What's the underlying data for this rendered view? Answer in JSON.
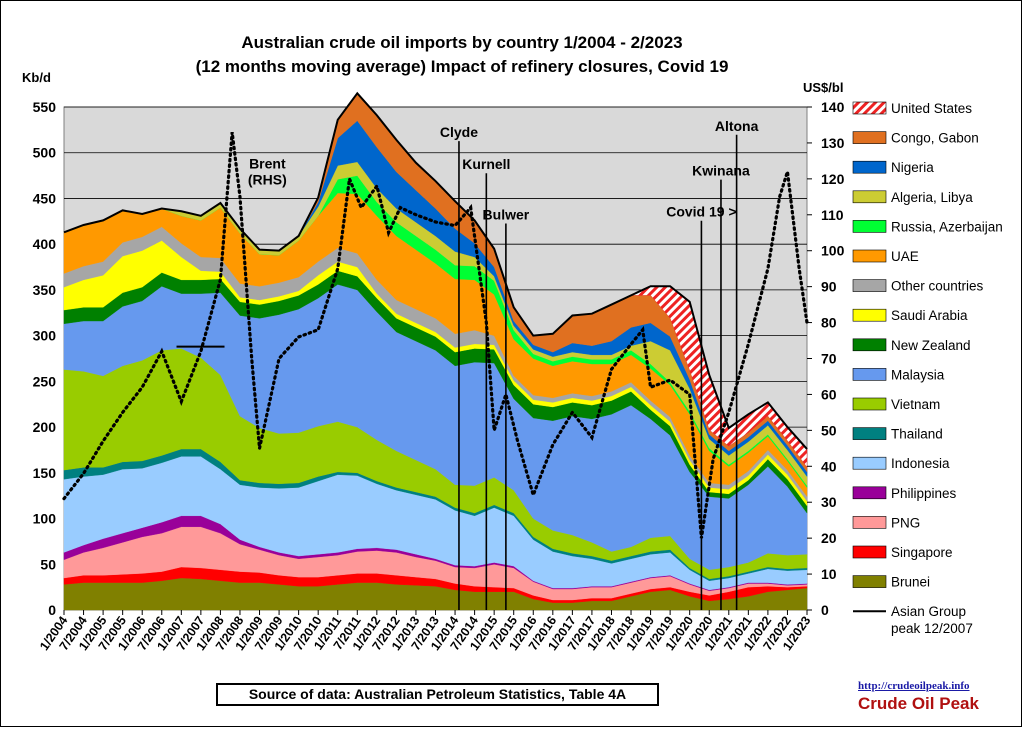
{
  "title_line1": "Australian crude oil imports  by country 1/2004 - 2/2023",
  "title_line2": "(12 months moving average) Impact of refinery closures, Covid 19",
  "source": "Source of data: Australian Petroleum Statistics,  Table 4A",
  "site_url": "http://crudeoilpeak.info",
  "site_name": "Crude Oil Peak",
  "chart_data": {
    "type": "area",
    "stacked": true,
    "ylabel": "Kb/d",
    "y2label": "US$/bl",
    "ylim": [
      0,
      550
    ],
    "y2lim": [
      0,
      140
    ],
    "yticks": [
      0,
      50,
      100,
      150,
      200,
      250,
      300,
      350,
      400,
      450,
      500,
      550
    ],
    "y2ticks": [
      0,
      10,
      20,
      30,
      40,
      50,
      60,
      70,
      80,
      90,
      100,
      110,
      120,
      130,
      140
    ],
    "grid": true,
    "legend_position": "right",
    "x": [
      2004,
      2004.5,
      2005,
      2005.5,
      2006,
      2006.5,
      2007,
      2007.5,
      2008,
      2008.5,
      2009,
      2009.5,
      2010,
      2010.5,
      2011,
      2011.5,
      2012,
      2012.5,
      2013,
      2013.5,
      2014,
      2014.5,
      2015,
      2015.5,
      2016,
      2016.5,
      2017,
      2017.5,
      2018,
      2018.5,
      2019,
      2019.5,
      2020,
      2020.5,
      2021,
      2021.5,
      2022,
      2022.5,
      2023
    ],
    "x_tick_labels": [
      "1/2004",
      "7/2004",
      "1/2005",
      "7/2005",
      "1/2006",
      "7/2006",
      "1/2007",
      "7/2007",
      "1/2008",
      "7/2008",
      "1/2009",
      "7/2009",
      "1/2010",
      "7/2010",
      "1/2011",
      "7/2011",
      "1/2012",
      "7/2012",
      "1/2013",
      "7/2013",
      "1/2014",
      "7/2014",
      "1/2015",
      "7/2015",
      "1/2016",
      "7/2016",
      "1/2017",
      "7/2017",
      "1/2018",
      "7/2018",
      "1/2019",
      "7/2019",
      "1/2020",
      "7/2020",
      "1/2021",
      "7/2021",
      "1/2022",
      "7/2022",
      "1/2023"
    ],
    "series": [
      {
        "name": "Brunei",
        "color": "#808000",
        "values": [
          28,
          30,
          30,
          30,
          30,
          32,
          35,
          34,
          32,
          30,
          30,
          28,
          26,
          26,
          28,
          30,
          30,
          28,
          27,
          26,
          22,
          20,
          20,
          20,
          12,
          8,
          8,
          10,
          10,
          15,
          20,
          22,
          15,
          10,
          12,
          15,
          20,
          22,
          24
        ]
      },
      {
        "name": "Singapore",
        "color": "#ff0000",
        "values": [
          7,
          8,
          8,
          9,
          10,
          10,
          12,
          12,
          12,
          12,
          11,
          10,
          10,
          10,
          10,
          10,
          10,
          10,
          9,
          8,
          7,
          6,
          5,
          4,
          4,
          3,
          3,
          3,
          3,
          3,
          3,
          3,
          5,
          6,
          8,
          10,
          6,
          3,
          2
        ]
      },
      {
        "name": "PNG",
        "color": "#ff9999",
        "values": [
          20,
          25,
          30,
          35,
          40,
          42,
          44,
          45,
          40,
          30,
          25,
          22,
          20,
          22,
          22,
          24,
          25,
          25,
          22,
          20,
          18,
          20,
          25,
          22,
          15,
          12,
          12,
          12,
          12,
          12,
          12,
          12,
          8,
          5,
          4,
          4,
          3,
          2,
          2
        ]
      },
      {
        "name": "Philippines",
        "color": "#990099",
        "values": [
          8,
          8,
          10,
          10,
          10,
          12,
          12,
          12,
          10,
          5,
          3,
          3,
          3,
          3,
          3,
          3,
          3,
          3,
          3,
          2,
          2,
          2,
          2,
          2,
          1,
          1,
          1,
          1,
          1,
          1,
          1,
          1,
          1,
          1,
          1,
          1,
          1,
          1,
          1
        ]
      },
      {
        "name": "Indonesia",
        "color": "#99ccff",
        "values": [
          80,
          75,
          70,
          70,
          65,
          65,
          65,
          65,
          60,
          60,
          65,
          70,
          75,
          80,
          85,
          80,
          70,
          65,
          65,
          65,
          60,
          55,
          60,
          55,
          45,
          40,
          35,
          30,
          25,
          25,
          25,
          25,
          15,
          10,
          10,
          10,
          15,
          15,
          15
        ]
      },
      {
        "name": "Thailand",
        "color": "#008080",
        "values": [
          10,
          10,
          8,
          8,
          8,
          8,
          8,
          8,
          8,
          5,
          5,
          5,
          5,
          5,
          3,
          3,
          3,
          3,
          3,
          3,
          3,
          3,
          3,
          3,
          3,
          3,
          3,
          3,
          3,
          3,
          3,
          3,
          2,
          2,
          2,
          2,
          2,
          2,
          2
        ]
      },
      {
        "name": "Vietnam",
        "color": "#99cc00",
        "values": [
          110,
          105,
          100,
          105,
          110,
          115,
          110,
          100,
          95,
          70,
          60,
          55,
          55,
          55,
          55,
          50,
          45,
          40,
          35,
          30,
          25,
          30,
          30,
          25,
          20,
          20,
          20,
          15,
          10,
          10,
          15,
          15,
          10,
          10,
          10,
          10,
          15,
          15,
          15
        ]
      },
      {
        "name": "Malaysia",
        "color": "#6699ee",
        "values": [
          50,
          55,
          60,
          65,
          65,
          70,
          60,
          70,
          90,
          110,
          120,
          130,
          135,
          140,
          150,
          150,
          140,
          130,
          130,
          130,
          130,
          135,
          125,
          100,
          110,
          120,
          130,
          135,
          150,
          155,
          130,
          110,
          95,
          80,
          75,
          85,
          95,
          75,
          45
        ]
      },
      {
        "name": "New Zealand",
        "color": "#008000",
        "values": [
          15,
          15,
          15,
          15,
          15,
          15,
          15,
          15,
          15,
          15,
          15,
          15,
          15,
          15,
          15,
          15,
          15,
          15,
          15,
          15,
          15,
          15,
          15,
          15,
          15,
          15,
          15,
          15,
          15,
          15,
          10,
          10,
          8,
          5,
          5,
          5,
          8,
          8,
          8
        ]
      },
      {
        "name": "Saudi Arabia",
        "color": "#ffff00",
        "values": [
          25,
          30,
          35,
          40,
          40,
          35,
          25,
          10,
          8,
          5,
          5,
          5,
          5,
          10,
          10,
          10,
          5,
          5,
          5,
          5,
          5,
          5,
          5,
          5,
          5,
          5,
          5,
          5,
          5,
          5,
          5,
          5,
          5,
          5,
          5,
          5,
          5,
          5,
          5
        ]
      },
      {
        "name": "Other countries",
        "color": "#a6a6a6",
        "values": [
          15,
          15,
          15,
          15,
          15,
          15,
          15,
          15,
          15,
          15,
          15,
          15,
          15,
          15,
          15,
          15,
          15,
          15,
          15,
          15,
          15,
          15,
          10,
          5,
          5,
          5,
          5,
          5,
          5,
          5,
          5,
          5,
          5,
          5,
          5,
          5,
          5,
          5,
          5
        ]
      },
      {
        "name": "UAE",
        "color": "#ff9900",
        "values": [
          45,
          45,
          45,
          35,
          25,
          20,
          30,
          40,
          55,
          55,
          35,
          30,
          40,
          50,
          60,
          65,
          70,
          70,
          65,
          60,
          60,
          55,
          45,
          40,
          40,
          35,
          35,
          35,
          30,
          30,
          35,
          35,
          45,
          35,
          20,
          20,
          15,
          10,
          10
        ]
      },
      {
        "name": "Russia, Azerbaijan",
        "color": "#00ff33",
        "values": [
          0,
          0,
          0,
          0,
          0,
          0,
          0,
          0,
          0,
          0,
          0,
          0,
          0,
          0,
          15,
          20,
          15,
          15,
          15,
          15,
          15,
          15,
          15,
          10,
          5,
          5,
          5,
          5,
          5,
          5,
          5,
          3,
          3,
          3,
          2,
          2,
          2,
          2,
          2
        ]
      },
      {
        "name": "Algeria, Libya",
        "color": "#cccc33",
        "values": [
          0,
          0,
          0,
          0,
          0,
          0,
          5,
          5,
          5,
          5,
          5,
          5,
          5,
          10,
          15,
          15,
          15,
          15,
          15,
          15,
          15,
          10,
          5,
          5,
          5,
          5,
          5,
          5,
          5,
          5,
          25,
          35,
          25,
          10,
          10,
          10,
          10,
          10,
          10
        ]
      },
      {
        "name": "Nigeria",
        "color": "#0066cc",
        "values": [
          0,
          0,
          0,
          0,
          0,
          0,
          0,
          0,
          0,
          0,
          0,
          0,
          0,
          5,
          30,
          45,
          45,
          40,
          35,
          30,
          25,
          15,
          10,
          5,
          5,
          5,
          10,
          10,
          15,
          20,
          20,
          15,
          10,
          5,
          5,
          5,
          5,
          5,
          5
        ]
      },
      {
        "name": "Congo, Gabon",
        "color": "#e07020",
        "values": [
          0,
          0,
          0,
          0,
          0,
          0,
          0,
          0,
          0,
          0,
          0,
          0,
          0,
          5,
          20,
          30,
          35,
          35,
          30,
          30,
          30,
          25,
          20,
          15,
          10,
          20,
          30,
          35,
          40,
          35,
          30,
          20,
          10,
          5,
          5,
          5,
          5,
          5,
          5
        ]
      },
      {
        "name": "United States",
        "color": "#ee2222",
        "pattern": "hatched",
        "values": [
          0,
          0,
          0,
          0,
          0,
          0,
          0,
          0,
          0,
          0,
          0,
          0,
          0,
          0,
          0,
          0,
          0,
          0,
          0,
          0,
          0,
          0,
          0,
          0,
          0,
          0,
          0,
          0,
          0,
          0,
          10,
          35,
          75,
          60,
          20,
          20,
          15,
          15,
          20
        ]
      }
    ],
    "brent": {
      "name": "Brent (RHS)",
      "axis": "right",
      "style": "dotted",
      "x": [
        2004,
        2004.5,
        2005,
        2005.5,
        2006,
        2006.5,
        2007,
        2007.5,
        2008,
        2008.3,
        2008.5,
        2008.8,
        2009,
        2009.5,
        2010,
        2010.5,
        2011,
        2011.3,
        2011.6,
        2012,
        2012.3,
        2012.6,
        2013,
        2013.5,
        2014,
        2014.4,
        2014.8,
        2015,
        2015.3,
        2015.6,
        2016,
        2016.5,
        2017,
        2017.5,
        2018,
        2018.5,
        2018.8,
        2019,
        2019.5,
        2020,
        2020.3,
        2020.6,
        2021,
        2021.5,
        2022,
        2022.3,
        2022.5,
        2022.8,
        2023
      ],
      "values": [
        31,
        38,
        47,
        55,
        62,
        72,
        58,
        72,
        92,
        133,
        115,
        70,
        45,
        70,
        76,
        78,
        95,
        120,
        112,
        118,
        105,
        112,
        110,
        108,
        107,
        112,
        80,
        50,
        60,
        47,
        32,
        46,
        55,
        48,
        67,
        74,
        78,
        62,
        64,
        60,
        20,
        42,
        55,
        74,
        95,
        115,
        122,
        95,
        80
      ]
    },
    "peak_marker": {
      "name": "Asian Group peak 12/2007",
      "x": 2007.9,
      "value": 288
    },
    "annotations": [
      {
        "text": "Brent",
        "x": 2009.2,
        "value": 483
      },
      {
        "text": "(RHS)",
        "x": 2009.2,
        "value": 465
      },
      {
        "text": "Clyde",
        "x": 2014.1,
        "value": 517,
        "line": true
      },
      {
        "text": "Kurnell",
        "x": 2014.8,
        "value": 482,
        "line": true
      },
      {
        "text": "Bulwer",
        "x": 2015.3,
        "value": 427,
        "line": true
      },
      {
        "text": "Covid 19 >",
        "x": 2020.3,
        "value": 430,
        "line": true
      },
      {
        "text": "Kwinana",
        "x": 2020.8,
        "value": 475,
        "line": true
      },
      {
        "text": "Altona",
        "x": 2021.2,
        "value": 524,
        "line": true
      }
    ]
  }
}
